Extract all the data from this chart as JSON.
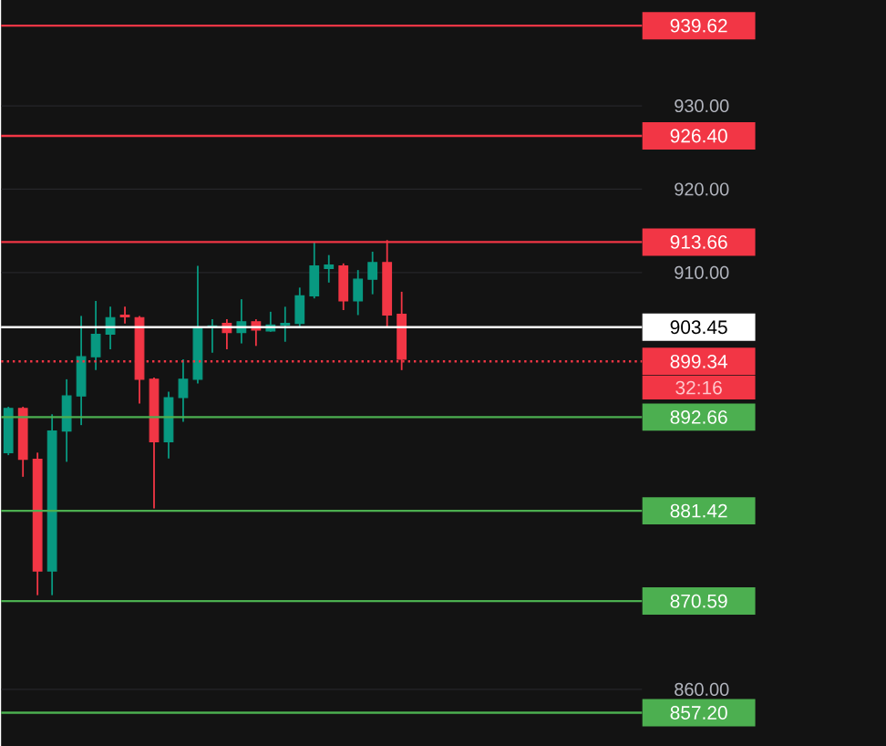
{
  "chart_data": {
    "type": "candlestick",
    "categories": [
      null,
      null,
      null,
      null,
      null,
      null,
      null,
      null,
      null,
      null,
      null,
      null,
      null,
      null,
      null,
      null,
      null,
      null,
      null,
      null,
      null,
      null,
      null,
      null,
      null,
      null,
      null,
      null,
      null,
      null,
      null,
      null,
      null,
      null,
      null,
      null,
      null,
      null,
      null,
      null,
      null,
      null,
      null,
      null
    ],
    "ohlc": [
      [
        888.4,
        893.9,
        888.1,
        893.7
      ],
      [
        893.7,
        893.9,
        885.5,
        887.6
      ],
      [
        887.6,
        888.4,
        871.3,
        874.2
      ],
      [
        874.2,
        893.0,
        871.3,
        891.0
      ],
      [
        891.0,
        897.2,
        887.3,
        895.2
      ],
      [
        895.2,
        904.8,
        891.7,
        899.9
      ],
      [
        899.9,
        906.6,
        898.3,
        902.6
      ],
      [
        902.6,
        905.9,
        900.8,
        904.6
      ],
      [
        904.9,
        905.9,
        903.9,
        904.7
      ],
      [
        904.6,
        904.8,
        894.3,
        897.2
      ],
      [
        897.2,
        897.4,
        881.7,
        889.7
      ],
      [
        889.7,
        895.7,
        887.7,
        895.0
      ],
      [
        895.0,
        899.6,
        892.1,
        897.2
      ],
      [
        897.2,
        910.8,
        896.7,
        903.4
      ],
      [
        903.4,
        904.4,
        900.4,
        903.6
      ],
      [
        903.9,
        904.4,
        900.8,
        902.8
      ],
      [
        902.8,
        906.8,
        901.5,
        904.1
      ],
      [
        904.1,
        904.4,
        901.2,
        903.1
      ],
      [
        903.0,
        905.3,
        902.9,
        903.7
      ],
      [
        903.7,
        905.9,
        901.7,
        903.9
      ],
      [
        903.9,
        908.2,
        903.5,
        907.2
      ],
      [
        907.2,
        913.7,
        906.9,
        910.8
      ],
      [
        910.5,
        912.1,
        908.8,
        910.9
      ],
      [
        910.8,
        911.1,
        905.5,
        906.6
      ],
      [
        906.6,
        910.3,
        904.9,
        909.2
      ],
      [
        909.2,
        912.5,
        907.4,
        911.2
      ],
      [
        911.2,
        913.9,
        903.4,
        904.9
      ],
      [
        905.0,
        907.7,
        898.3,
        899.6
      ],
      null,
      null,
      null,
      null,
      null,
      null,
      null,
      null,
      null,
      null,
      null,
      null,
      null,
      null,
      null,
      null
    ],
    "colors": [
      "#089981",
      "#f23645",
      "#f23645",
      "#089981",
      "#089981",
      "#089981",
      "#089981",
      "#089981",
      "#f23645",
      "#f23645",
      "#f23645",
      "#089981",
      "#089981",
      "#089981",
      "#089981",
      "#f23645",
      "#089981",
      "#f23645",
      "#089981",
      "#089981",
      "#089981",
      "#089981",
      "#089981",
      "#f23645",
      "#089981",
      "#089981",
      "#f23645",
      "#f23645",
      null,
      null,
      null,
      null,
      null,
      null,
      null,
      null,
      null,
      null,
      null,
      null,
      null,
      null,
      null,
      null
    ],
    "ylim": [
      853.1,
      942.7
    ],
    "yticks": [
      {
        "value": 860,
        "label": "860.00"
      },
      {
        "value": 910,
        "label": "910.00"
      },
      {
        "value": 920,
        "label": "920.00"
      },
      {
        "value": 930,
        "label": "930.00"
      }
    ],
    "grid": "y",
    "ref_lines": [
      {
        "axis": "y",
        "value": 939.62,
        "label": "939.62",
        "color": "#f23645"
      },
      {
        "axis": "y",
        "value": 926.4,
        "label": "926.40",
        "color": "#f23645"
      },
      {
        "axis": "y",
        "value": 913.66,
        "label": "913.66",
        "color": "#f23645"
      },
      {
        "axis": "y",
        "value": 903.45,
        "label": "903.45",
        "color": "#ffffff"
      },
      {
        "axis": "y",
        "value": 899.34,
        "label": "899.34",
        "color": "#f23645",
        "line_style": "dotted"
      },
      {
        "axis": "y",
        "value": 892.66,
        "label": "892.66",
        "color": "#4caf50"
      },
      {
        "axis": "y",
        "value": 881.42,
        "label": "881.42",
        "color": "#4caf50"
      },
      {
        "axis": "y",
        "value": 870.59,
        "label": "870.59",
        "color": "#4caf50"
      },
      {
        "axis": "y",
        "value": 857.2,
        "label": "857.20",
        "color": "#4caf50"
      }
    ],
    "annotations": [
      "32:16"
    ]
  }
}
